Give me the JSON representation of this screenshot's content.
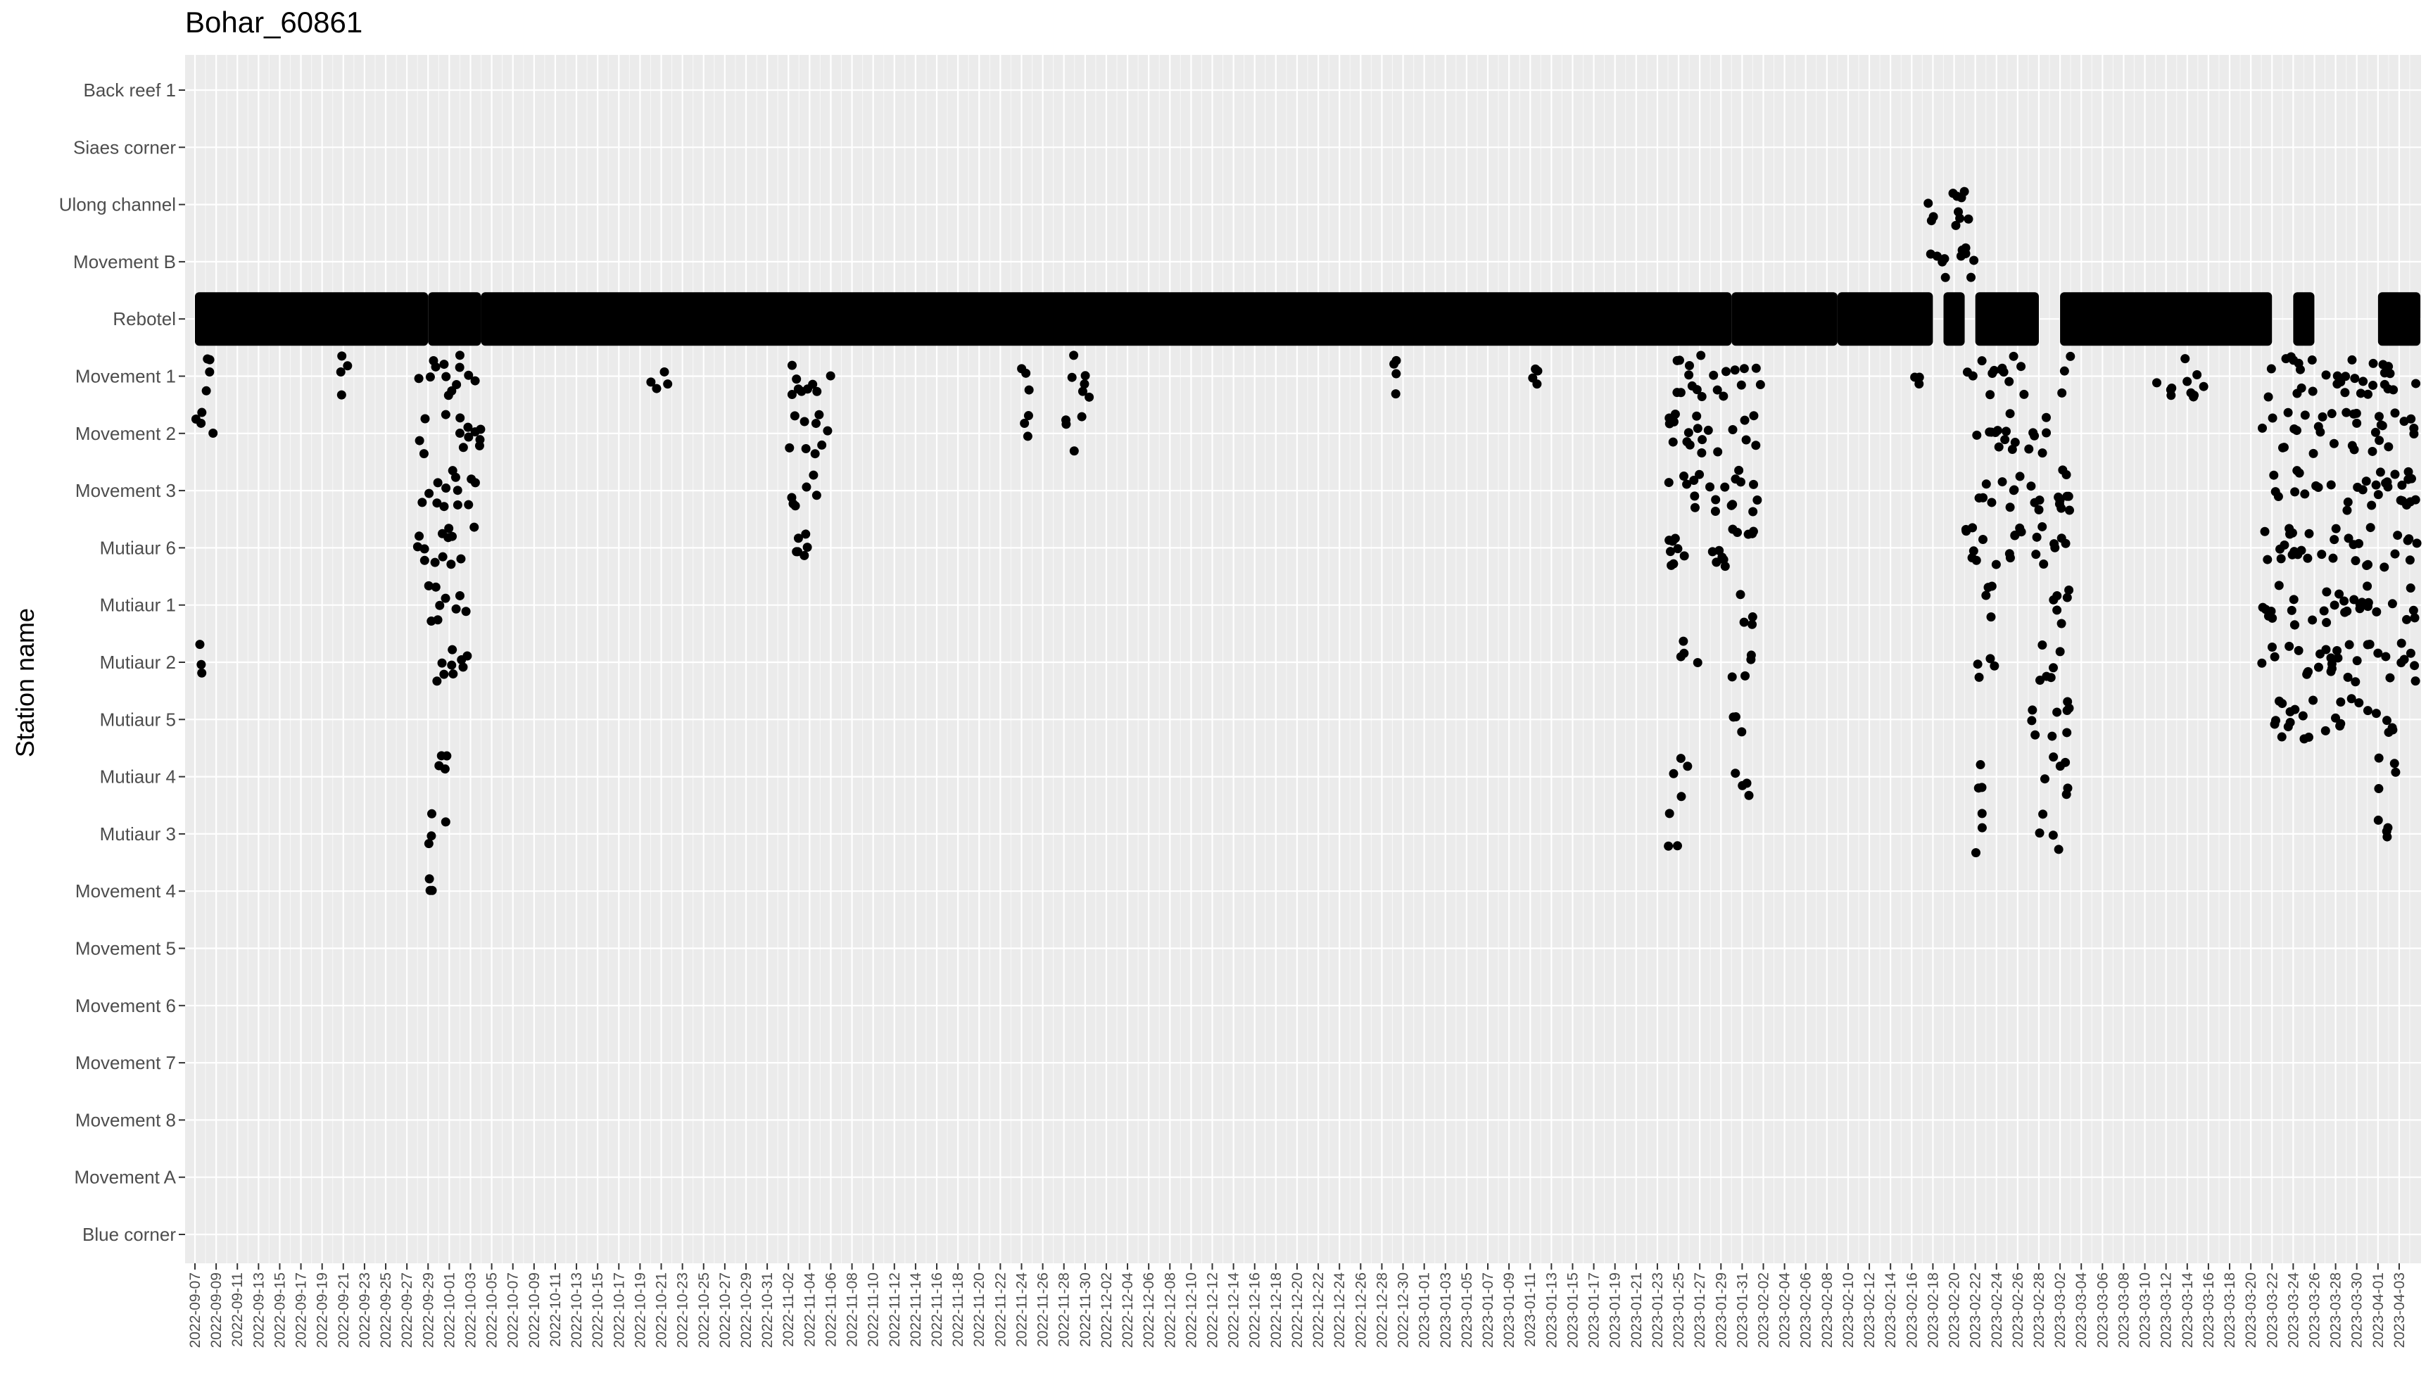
{
  "chart_data": {
    "type": "scatter",
    "title": "Bohar_60861",
    "ylabel": "Station name",
    "xlabel": "",
    "x_range": [
      "2022-09-07",
      "2023-04-04"
    ],
    "x_tick_step_days": 2,
    "grid": true,
    "legend": "none",
    "point_color": "#000000",
    "panel_background": "#ebebeb",
    "categories": [
      "Back reef 1",
      "Siaes corner",
      "Ulong channel",
      "Movement B",
      "Rebotel",
      "Movement 1",
      "Movement 2",
      "Movement 3",
      "Mutiaur 6",
      "Mutiaur 1",
      "Mutiaur 2",
      "Mutiaur 5",
      "Mutiaur 4",
      "Mutiaur 3",
      "Movement 4",
      "Movement 5",
      "Movement 6",
      "Movement 7",
      "Movement 8",
      "Movement A",
      "Blue corner"
    ],
    "series": [
      {
        "station": "Rebotel",
        "ranges": [
          [
            "2022-09-07",
            "2022-09-28"
          ],
          [
            "2022-09-29",
            "2022-10-03"
          ],
          [
            "2022-10-04",
            "2023-01-29"
          ],
          [
            "2023-01-30",
            "2023-02-08"
          ],
          [
            "2023-02-09",
            "2023-02-17"
          ],
          [
            "2023-02-19",
            "2023-02-20"
          ],
          [
            "2023-02-22",
            "2023-02-27"
          ],
          [
            "2023-03-02",
            "2023-03-21"
          ],
          [
            "2023-03-24",
            "2023-03-25"
          ],
          [
            "2023-04-01",
            "2023-04-04"
          ]
        ]
      },
      {
        "station": "Ulong channel",
        "ranges": [
          [
            "2023-02-17",
            "2023-02-21"
          ]
        ]
      },
      {
        "station": "Movement B",
        "ranges": [
          [
            "2023-02-17",
            "2023-02-21"
          ]
        ]
      },
      {
        "station": "Movement 1",
        "ranges": [
          [
            "2022-09-07",
            "2022-09-08"
          ],
          [
            "2022-09-20",
            "2022-09-21"
          ],
          [
            "2022-09-28",
            "2022-10-03"
          ],
          [
            "2022-10-20",
            "2022-10-21"
          ],
          [
            "2022-11-02",
            "2022-11-05"
          ],
          [
            "2022-11-24",
            "2022-11-24"
          ],
          [
            "2022-11-28",
            "2022-11-30"
          ],
          [
            "2022-12-28",
            "2022-12-29"
          ],
          [
            "2023-01-11",
            "2023-01-12"
          ],
          [
            "2023-01-24",
            "2023-02-01"
          ],
          [
            "2023-02-16",
            "2023-02-16"
          ],
          [
            "2023-02-21",
            "2023-02-26"
          ],
          [
            "2023-03-02",
            "2023-03-02"
          ],
          [
            "2023-03-11",
            "2023-03-15"
          ],
          [
            "2023-03-21",
            "2023-04-04"
          ]
        ]
      },
      {
        "station": "Movement 2",
        "ranges": [
          [
            "2022-09-07",
            "2022-09-08"
          ],
          [
            "2022-09-28",
            "2022-10-03"
          ],
          [
            "2022-11-02",
            "2022-11-05"
          ],
          [
            "2022-11-24",
            "2022-11-24"
          ],
          [
            "2022-11-28",
            "2022-11-29"
          ],
          [
            "2023-01-24",
            "2023-02-01"
          ],
          [
            "2023-02-21",
            "2023-02-28"
          ],
          [
            "2023-03-21",
            "2023-04-04"
          ]
        ]
      },
      {
        "station": "Movement 3",
        "ranges": [
          [
            "2022-09-28",
            "2022-10-03"
          ],
          [
            "2022-11-02",
            "2022-11-04"
          ],
          [
            "2023-01-24",
            "2023-02-01"
          ],
          [
            "2023-02-21",
            "2023-03-02"
          ],
          [
            "2023-03-21",
            "2023-04-04"
          ]
        ]
      },
      {
        "station": "Mutiaur 6",
        "ranges": [
          [
            "2022-09-28",
            "2022-10-03"
          ],
          [
            "2022-11-02",
            "2022-11-04"
          ],
          [
            "2023-01-24",
            "2023-02-01"
          ],
          [
            "2023-02-21",
            "2023-03-02"
          ],
          [
            "2023-03-21",
            "2023-04-04"
          ]
        ]
      },
      {
        "station": "Mutiaur 1",
        "ranges": [
          [
            "2022-09-29",
            "2022-10-02"
          ],
          [
            "2023-01-30",
            "2023-01-31"
          ],
          [
            "2023-02-22",
            "2023-02-23"
          ],
          [
            "2023-02-28",
            "2023-03-02"
          ],
          [
            "2023-03-21",
            "2023-04-04"
          ]
        ]
      },
      {
        "station": "Mutiaur 2",
        "ranges": [
          [
            "2022-09-07",
            "2022-09-07"
          ],
          [
            "2022-09-29",
            "2022-10-02"
          ],
          [
            "2023-01-25",
            "2023-01-26"
          ],
          [
            "2023-01-30",
            "2023-01-31"
          ],
          [
            "2023-02-22",
            "2023-02-23"
          ],
          [
            "2023-02-28",
            "2023-03-02"
          ],
          [
            "2023-03-21",
            "2023-04-04"
          ]
        ]
      },
      {
        "station": "Mutiaur 5",
        "ranges": [
          [
            "2023-01-30",
            "2023-01-30"
          ],
          [
            "2023-02-27",
            "2023-03-02"
          ],
          [
            "2023-03-22",
            "2023-04-02"
          ]
        ]
      },
      {
        "station": "Mutiaur 4",
        "ranges": [
          [
            "2022-09-29",
            "2022-09-30"
          ],
          [
            "2023-01-24",
            "2023-01-25"
          ],
          [
            "2023-01-30",
            "2023-01-31"
          ],
          [
            "2023-02-22",
            "2023-02-22"
          ],
          [
            "2023-02-28",
            "2023-03-02"
          ],
          [
            "2023-04-01",
            "2023-04-02"
          ]
        ]
      },
      {
        "station": "Mutiaur 3",
        "ranges": [
          [
            "2022-09-29",
            "2022-09-30"
          ],
          [
            "2023-01-24",
            "2023-01-24"
          ],
          [
            "2023-02-22",
            "2023-02-22"
          ],
          [
            "2023-02-28",
            "2023-03-01"
          ],
          [
            "2023-04-01",
            "2023-04-02"
          ]
        ]
      },
      {
        "station": "Movement 4",
        "ranges": [
          [
            "2022-09-29",
            "2022-09-29"
          ]
        ]
      }
    ]
  }
}
